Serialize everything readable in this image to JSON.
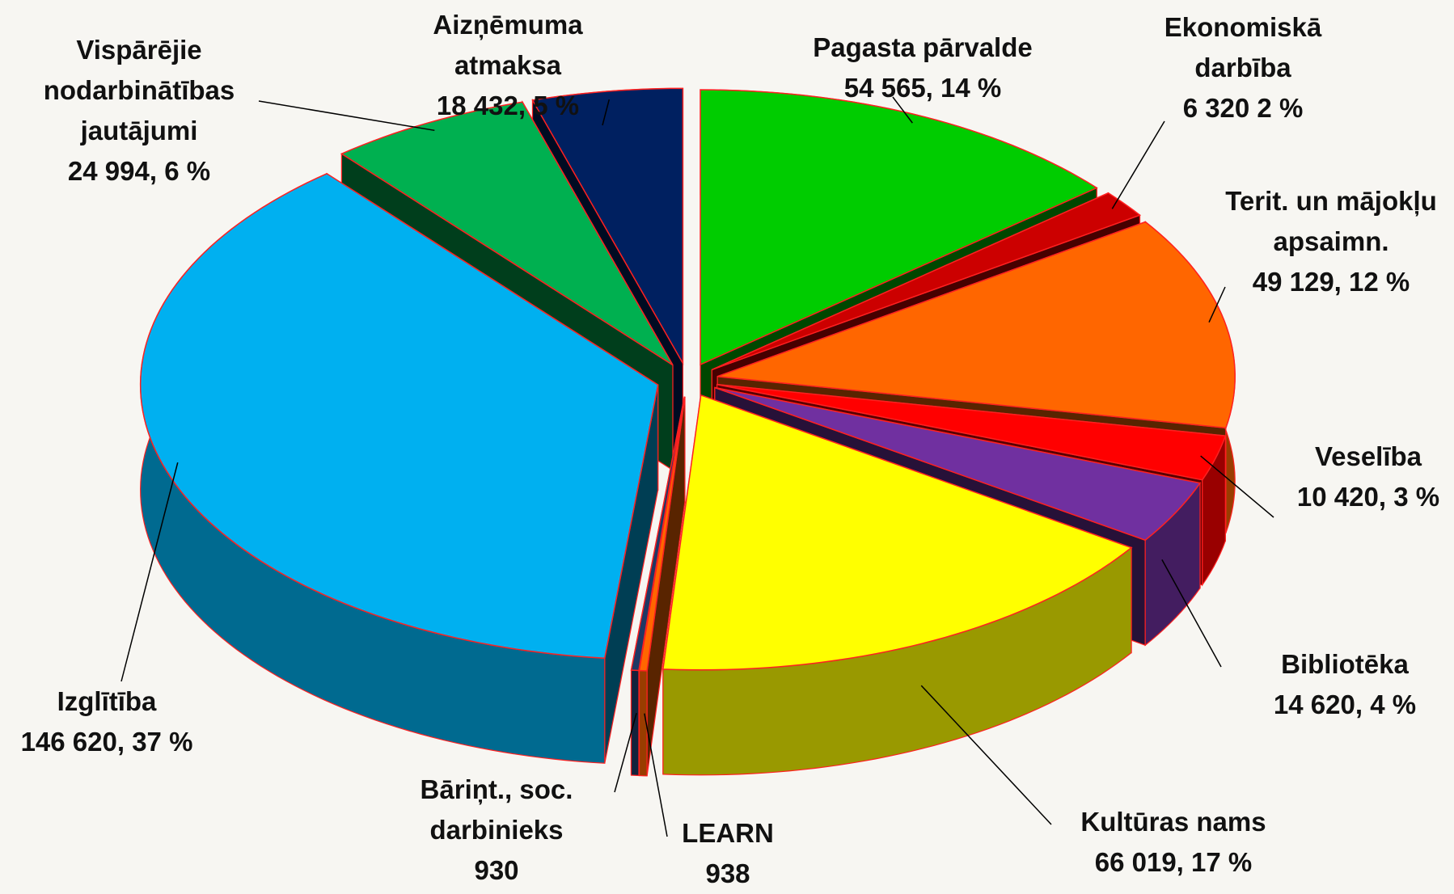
{
  "chart_data": {
    "type": "pie",
    "categories": [
      "Pagasta pārvalde",
      "Ekonomiskā darbība",
      "Terit. un mājokļu apsaimn.",
      "Veselība",
      "Bibliotēka",
      "Kultūras nams",
      "LEARN",
      "Bāriņt., soc. darbinieks",
      "Izglītība",
      "Vispārējie nodarbinātības jautājumi",
      "Aizņēmuma atmaksa"
    ],
    "values": [
      54565,
      6320,
      49129,
      10420,
      14620,
      66019,
      938,
      930,
      146620,
      24994,
      18432
    ],
    "value_labels": [
      "54 565, 14 %",
      "6 320 2 %",
      "49 129, 12 %",
      "10 420, 3 %",
      "14 620, 4 %",
      "66 019, 17 %",
      "938",
      "930",
      "146 620, 37 %",
      "24 994, 6 %",
      "18 432, 5 %"
    ],
    "colors": [
      "#00cc00",
      "#cc0000",
      "#ff6600",
      "#ff0000",
      "#7030a0",
      "#ffff00",
      "#ff6600",
      "#1f3864",
      "#00b0f0",
      "#00b050",
      "#002060"
    ]
  }
}
